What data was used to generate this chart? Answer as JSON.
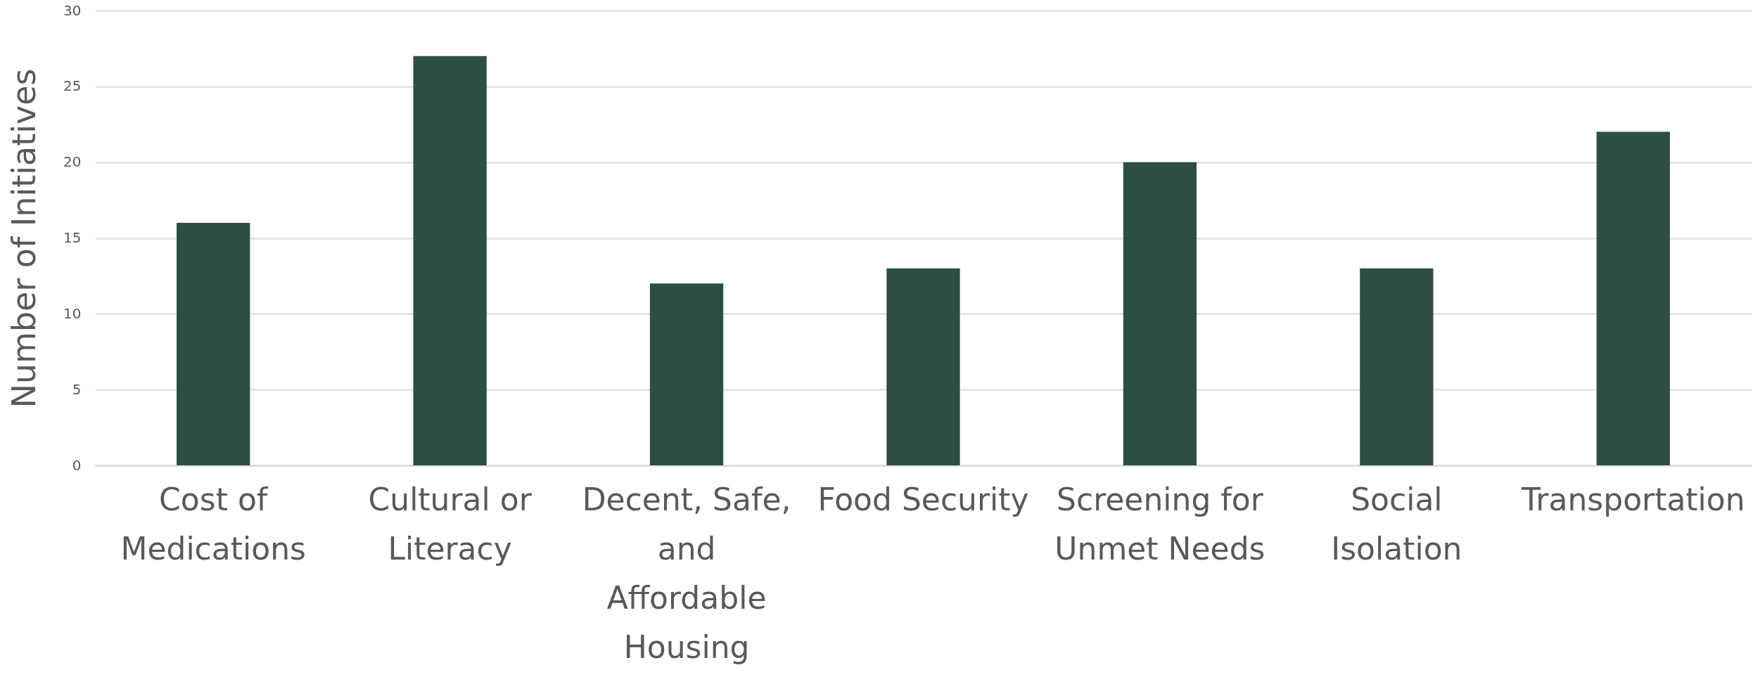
{
  "chart_data": {
    "type": "bar",
    "ylabel": "Number of Initiatives",
    "categories": [
      "Cost of Medications",
      "Cultural or Literacy",
      "Decent, Safe, and Affordable Housing",
      "Food Security",
      "Screening for Unmet Needs",
      "Social Isolation",
      "Transportation"
    ],
    "values": [
      16,
      27,
      12,
      13,
      20,
      13,
      22
    ],
    "color": "#2d4e45",
    "ylim": [
      0,
      30
    ],
    "yticks": [
      0,
      5,
      10,
      15,
      20,
      25,
      30
    ],
    "grid": "y"
  }
}
